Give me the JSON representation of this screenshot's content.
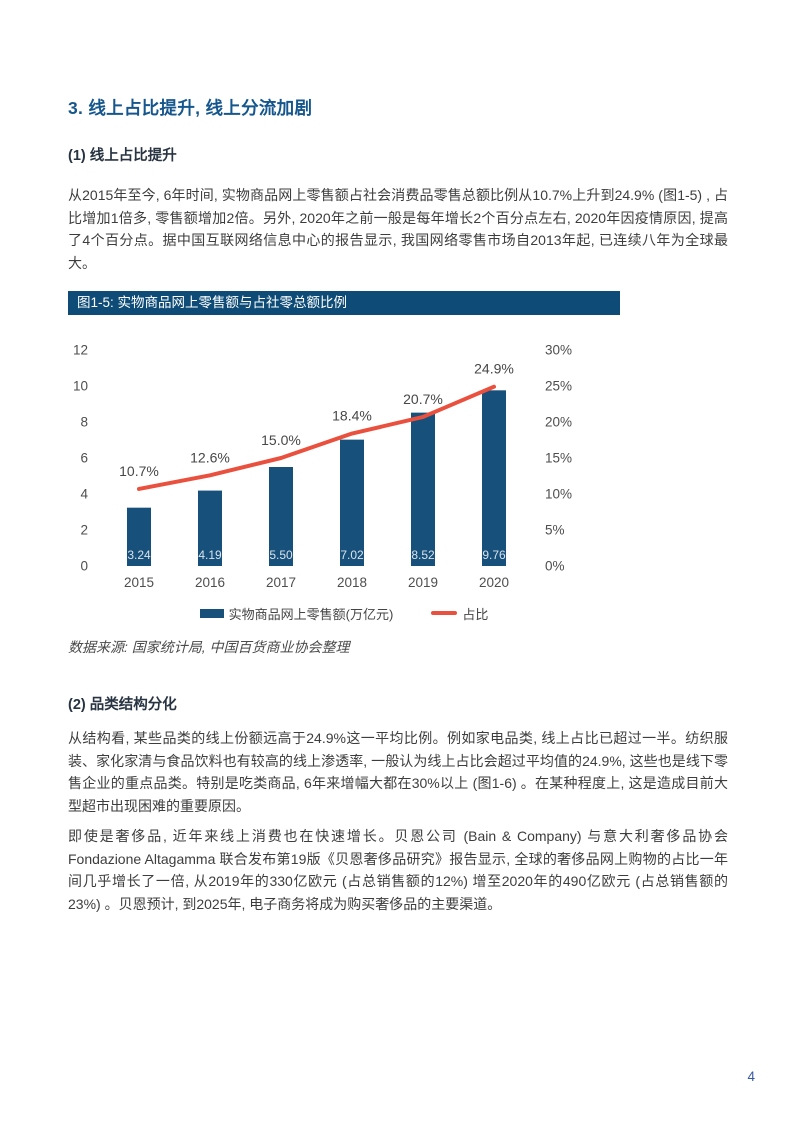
{
  "page": {
    "number": "4"
  },
  "heading": {
    "text": "3. 线上占比提升, 线上分流加剧"
  },
  "sections": {
    "s1": {
      "title": "(1) 线上占比提升",
      "paragraph": "从2015年至今, 6年时间, 实物商品网上零售额占社会消费品零售总额比例从10.7%上升到24.9% (图1-5) , 占比增加1倍多, 零售额增加2倍。另外, 2020年之前一般是每年增长2个百分点左右, 2020年因疫情原因, 提高了4个百分点。据中国互联网络信息中心的报告显示, 我国网络零售市场自2013年起, 已连续八年为全球最大。"
    },
    "s2": {
      "title": "(2) 品类结构分化",
      "paragraph1": "从结构看, 某些品类的线上份额远高于24.9%这一平均比例。例如家电品类, 线上占比已超过一半。纺织服装、家化家清与食品饮料也有较高的线上渗透率, 一般认为线上占比会超过平均值的24.9%, 这些也是线下零售企业的重点品类。特别是吃类商品, 6年来增幅大都在30%以上 (图1-6) 。在某种程度上, 这是造成目前大型超市出现困难的重要原因。",
      "paragraph2": "即使是奢侈品, 近年来线上消费也在快速增长。贝恩公司 (Bain & Company) 与意大利奢侈品协会 Fondazione Altagamma 联合发布第19版《贝恩奢侈品研究》报告显示, 全球的奢侈品网上购物的占比一年间几乎增长了一倍, 从2019年的330亿欧元 (占总销售额的12%) 增至2020年的490亿欧元 (占总销售额的23%) 。贝恩预计, 到2025年, 电子商务将成为购买奢侈品的主要渠道。"
    }
  },
  "figure": {
    "title": "图1-5: 实物商品网上零售额与占社零总额比例",
    "source_note": "数据来源: 国家统计局, 中国百货商业协会整理",
    "title_bar_color": "#0E4C77",
    "legend": [
      {
        "label": "实物商品网上零售额(万亿元)",
        "swatch": "bar",
        "color": "#17507B"
      },
      {
        "label": "占比",
        "swatch": "line",
        "color": "#E9513E"
      }
    ]
  },
  "chart_data": {
    "type": "bar+line combo, dual axis",
    "categories": [
      "2015",
      "2016",
      "2017",
      "2018",
      "2019",
      "2020"
    ],
    "series": [
      {
        "name": "实物商品网上零售额(万亿元)",
        "type": "bar",
        "axis": "left",
        "color": "#17507B",
        "values": [
          3.24,
          4.19,
          5.5,
          7.02,
          8.52,
          9.76
        ],
        "labels": [
          "3.24",
          "4.19",
          "5.50",
          "7.02",
          "8.52",
          "9.76"
        ],
        "label_color": "#D9E2EA"
      },
      {
        "name": "占比",
        "type": "line",
        "axis": "right",
        "color": "#E9513E",
        "values": [
          10.7,
          12.6,
          15.0,
          18.4,
          20.7,
          24.9
        ],
        "labels": [
          "10.7%",
          "12.6%",
          "15.0%",
          "18.4%",
          "20.7%",
          "24.9%"
        ],
        "label_color": "#474747"
      }
    ],
    "left_axis": {
      "range": [
        0,
        12
      ],
      "ticks": [
        0,
        2,
        4,
        6,
        8,
        10,
        12
      ]
    },
    "right_axis": {
      "range": [
        0,
        30
      ],
      "ticks": [
        "0%",
        "5%",
        "10%",
        "15%",
        "20%",
        "25%",
        "30%"
      ]
    },
    "grid": false,
    "legend_position": "bottom"
  }
}
